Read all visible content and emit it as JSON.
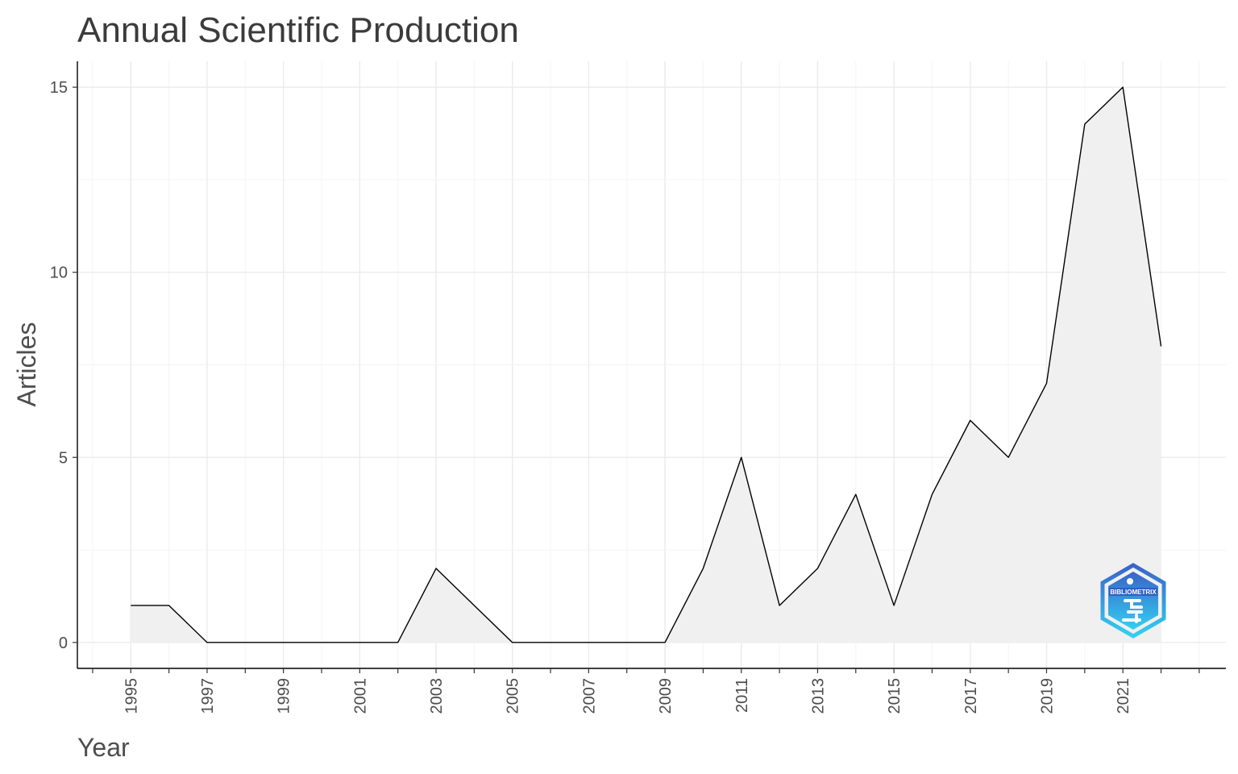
{
  "chart_data": {
    "type": "area",
    "title": "Annual Scientific Production",
    "xlabel": "Year",
    "ylabel": "Articles",
    "x": [
      1995,
      1996,
      1997,
      1998,
      1999,
      2000,
      2001,
      2002,
      2003,
      2004,
      2005,
      2006,
      2007,
      2008,
      2009,
      2010,
      2011,
      2012,
      2013,
      2014,
      2015,
      2016,
      2017,
      2018,
      2019,
      2020,
      2021,
      2022
    ],
    "series": [
      {
        "values": [
          1,
          1,
          0,
          0,
          0,
          0,
          0,
          0,
          2,
          1,
          0,
          0,
          0,
          0,
          0,
          2,
          5,
          1,
          2,
          4,
          1,
          4,
          6,
          5,
          7,
          14,
          15,
          8
        ]
      }
    ],
    "x_ticks": [
      "1995",
      "1997",
      "1999",
      "2001",
      "2003",
      "2005",
      "2007",
      "2009",
      "2011",
      "2013",
      "2015",
      "2017",
      "2019",
      "2021"
    ],
    "y_ticks": [
      "0",
      "5",
      "10",
      "15"
    ],
    "xlim": [
      1993.6,
      2023.7
    ],
    "ylim": [
      -0.7,
      15.7
    ],
    "grid": true,
    "legend": "none",
    "colors": {
      "area_fill": "#f0f0f0",
      "line": "#000000",
      "logo_dark": "#3a6fd0",
      "logo_light": "#33c6ee"
    },
    "logo": {
      "text": "BIBLIOMETRIX",
      "icon": "bibliometrix-logo"
    }
  }
}
